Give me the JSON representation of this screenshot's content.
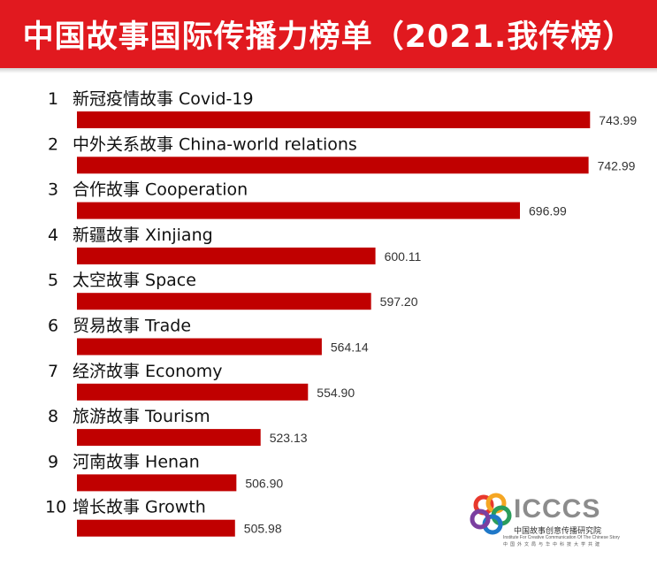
{
  "header": {
    "title": "中国故事国际传播力榜单（2021.我传榜）",
    "background_color": "#e1191f"
  },
  "chart_data": {
    "type": "bar",
    "orientation": "horizontal",
    "bar_color": "#c00000",
    "categories": [
      "新冠疫情故事 Covid-19",
      "中外关系故事 China-world relations",
      "合作故事 Cooperation",
      "新疆故事 Xinjiang",
      "太空故事 Space",
      "贸易故事 Trade",
      "经济故事 Economy",
      "旅游故事 Tourism",
      "河南故事 Henan",
      "增长故事 Growth"
    ],
    "ranks": [
      "1",
      "2",
      "3",
      "4",
      "5",
      "6",
      "7",
      "8",
      "9",
      "10"
    ],
    "values": [
      743.99,
      742.99,
      696.99,
      600.11,
      597.2,
      564.14,
      554.9,
      523.13,
      506.9,
      505.98
    ],
    "value_labels": [
      "743.99",
      "742.99",
      "696.99",
      "600.11",
      "597.20",
      "564.14",
      "554.90",
      "523.13",
      "506.90",
      "505.98"
    ],
    "xlim": [
      400,
      745
    ],
    "grid": false,
    "legend": "none"
  },
  "logo": {
    "name": "ICCCS",
    "cn_name": "中国故事创意传播研究院",
    "en_name": "Institute For Creative Communication Of The Chinese Story",
    "sub": "中国外文局与华中科技大学共建",
    "colors": [
      "#e8382c",
      "#f5a623",
      "#2a9d5c",
      "#1f78c8",
      "#7b3fa0"
    ]
  }
}
